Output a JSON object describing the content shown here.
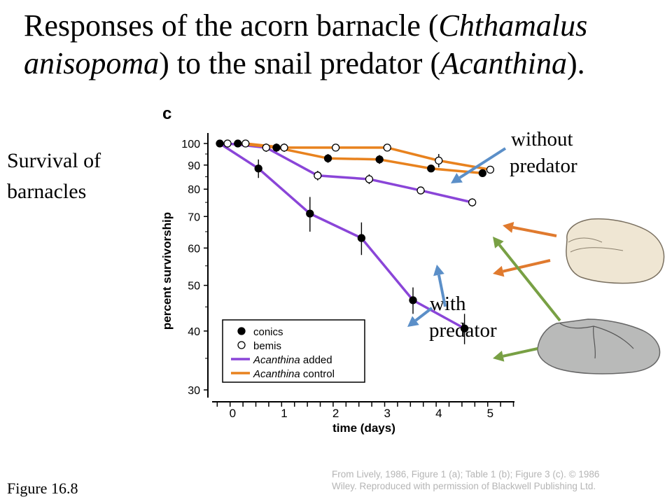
{
  "slide": {
    "title_part1": "Responses of the acorn barnacle (",
    "title_italic1": "Chthamalus anisopoma",
    "title_part2": ") to the snail predator (",
    "title_italic2": "Acanthina",
    "title_part3": ").",
    "side_label_line1": "Survival of",
    "side_label_line2": "barnacles",
    "annotation_without_line1": "without",
    "annotation_without_line2": "predator",
    "annotation_with_line1": "with",
    "annotation_with_line2": "predator",
    "figure_label": "Figure 16.8",
    "credit_line1": "From Lively, 1986, Figure 1 (a); Table 1 (b); Figure 3 (c). © 1986",
    "credit_line2": "Wiley. Reproduced with permission of Blackwell Publishing Ltd."
  },
  "colors": {
    "acanthina_added": "#8a45d8",
    "acanthina_control": "#e8821e",
    "arrow_blue": "#5b8fc8",
    "arrow_orange": "#e07a2e",
    "arrow_green": "#78a044"
  },
  "chart_data": {
    "type": "line",
    "panel_label": "c",
    "xlabel": "time (days)",
    "ylabel": "percent survivorship",
    "x_ticks": [
      "0",
      "1",
      "2",
      "3",
      "4",
      "5"
    ],
    "y_ticks": [
      "30",
      "40",
      "50",
      "60",
      "70",
      "80",
      "90",
      "100"
    ],
    "y_scale": "log",
    "xlim": [
      -0.2,
      5.5
    ],
    "ylim": [
      30,
      100
    ],
    "legend": {
      "placement": "bottom-left",
      "entries": [
        {
          "label": "conics",
          "marker": "filled-circle"
        },
        {
          "label": "bemis",
          "marker": "open-circle"
        },
        {
          "label": "Acanthina added",
          "line": "acanthina_added",
          "italic_part": "Acanthina",
          "rest": " added"
        },
        {
          "label": "Acanthina control",
          "line": "acanthina_control",
          "italic_part": "Acanthina",
          "rest": " control"
        }
      ]
    },
    "series": [
      {
        "name": "conics Acanthina added",
        "color": "acanthina_added",
        "marker": "filled",
        "x": [
          0,
          0.75,
          1.75,
          2.75,
          3.75,
          4.75
        ],
        "y": [
          100,
          88.5,
          71,
          63,
          46.5,
          40.5
        ]
      },
      {
        "name": "bemis Acanthina added",
        "color": "acanthina_added",
        "marker": "open",
        "x": [
          0.15,
          0.9,
          1.9,
          2.9,
          3.9,
          4.9
        ],
        "y": [
          100,
          98,
          85.5,
          84,
          79.5,
          75
        ]
      },
      {
        "name": "conics Acanthina control",
        "color": "acanthina_control",
        "marker": "filled",
        "x": [
          0.35,
          1.1,
          2.1,
          3.1,
          4.1,
          5.1
        ],
        "y": [
          100,
          98,
          93,
          92.5,
          88.5,
          86.5
        ]
      },
      {
        "name": "bemis Acanthina control",
        "color": "acanthina_control",
        "marker": "open",
        "x": [
          0.5,
          1.25,
          2.25,
          3.25,
          4.25,
          5.25
        ],
        "y": [
          100,
          98,
          98,
          98,
          92,
          88
        ]
      }
    ],
    "error_half_width": {
      "conics Acanthina added": [
        0,
        4,
        6,
        5,
        3,
        3
      ],
      "bemis Acanthina added": [
        0,
        2,
        2,
        2,
        1.5,
        1.5
      ],
      "conics Acanthina control": [
        0,
        2,
        2,
        2,
        1,
        1
      ],
      "bemis Acanthina control": [
        0,
        2,
        1,
        1,
        3,
        1
      ]
    }
  }
}
